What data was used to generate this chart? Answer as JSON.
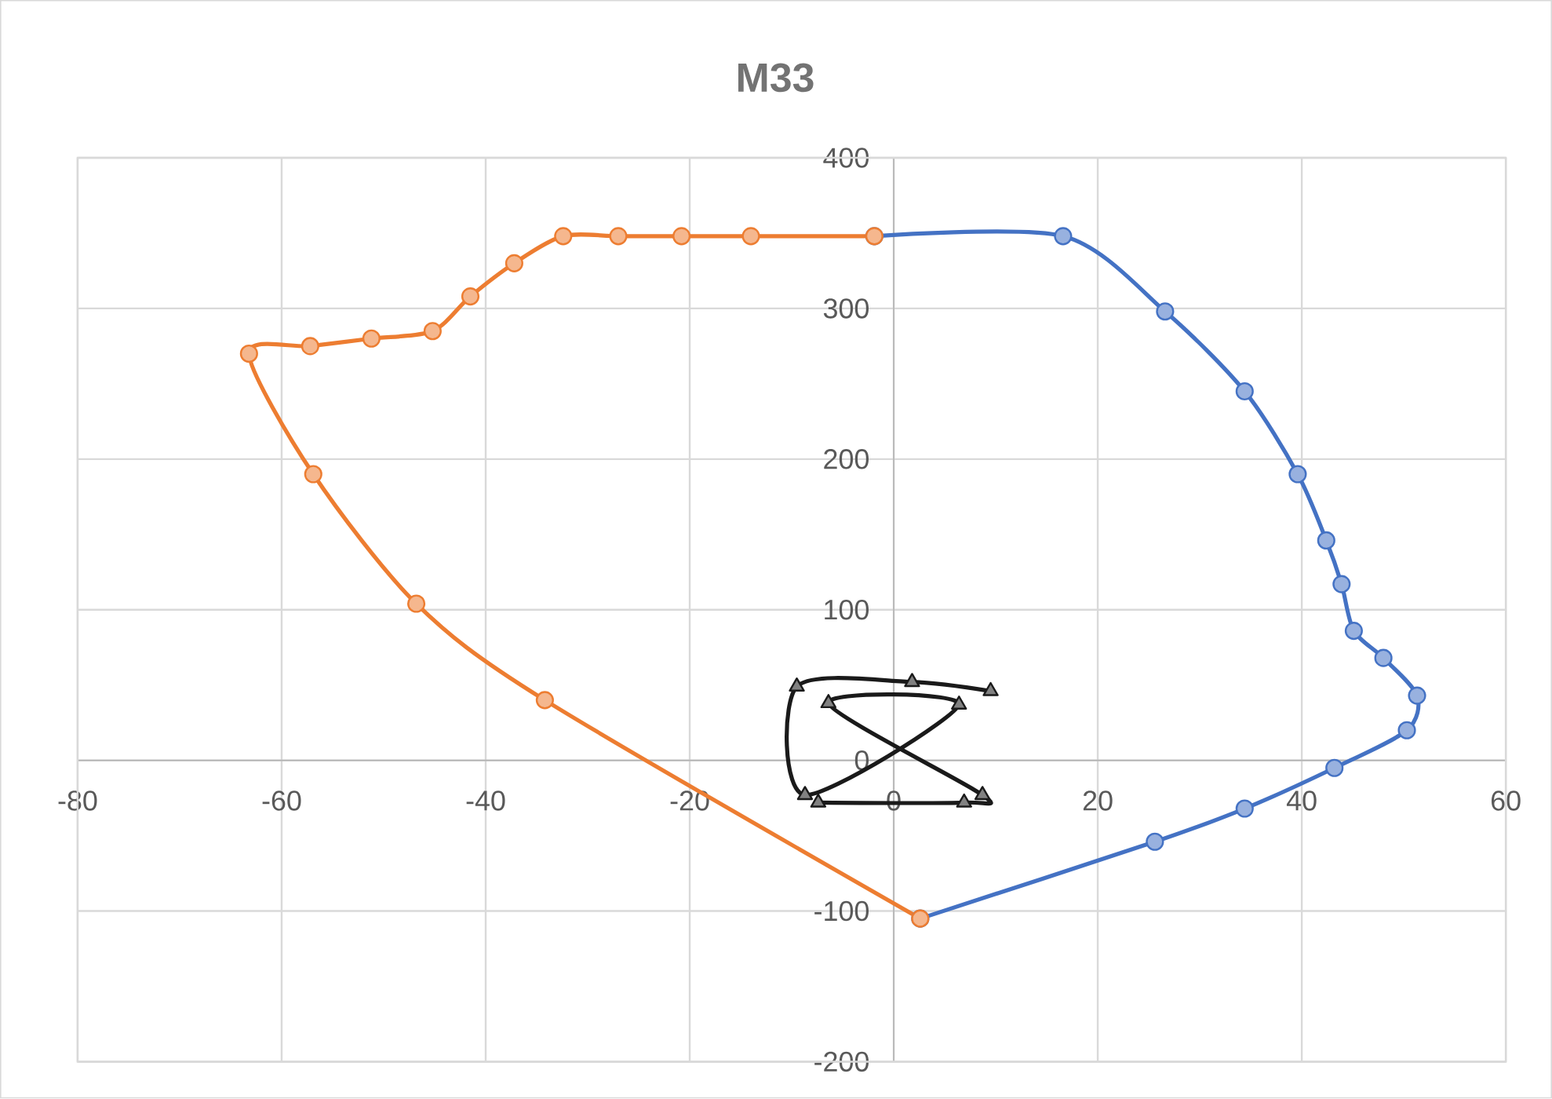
{
  "chart_data": {
    "type": "line",
    "title": "M33",
    "xlim": [
      -80,
      60
    ],
    "xticks": [
      -80,
      -60,
      -40,
      -20,
      0,
      20,
      40,
      60
    ],
    "ylim": [
      -200,
      400
    ],
    "yticks": [
      -200,
      -100,
      0,
      100,
      200,
      300,
      400
    ],
    "grid": true,
    "series": [
      {
        "color": "#4472c4",
        "marker": "circle",
        "x": [
          2.6,
          25.6,
          34.4,
          43.2,
          50.3,
          51.3,
          48.0,
          45.1,
          43.9,
          42.4,
          39.6,
          34.4,
          26.6,
          16.6,
          -1.9
        ],
        "values": [
          -105,
          -54,
          -32,
          -5,
          20,
          43,
          68,
          86,
          117,
          146,
          190,
          245,
          298,
          348,
          348
        ]
      },
      {
        "color": "#ed7d31",
        "marker": "circle",
        "x": [
          -1.9,
          -14.0,
          -20.8,
          -27.0,
          -32.4,
          -37.2,
          -41.5,
          -45.2,
          -51.2,
          -57.2,
          -63.2,
          -56.9,
          -46.8,
          -34.2,
          2.6
        ],
        "values": [
          348,
          348,
          348,
          348,
          348,
          330,
          308,
          285,
          280,
          275,
          270,
          190,
          104,
          40,
          -105
        ]
      },
      {
        "color": "#1a1a1a",
        "marker": "triangle",
        "x": [
          9.5,
          1.8,
          -9.5,
          -8.7,
          6.4,
          -6.4,
          8.7,
          6.9,
          -7.4
        ],
        "values": [
          46,
          52,
          49,
          -23,
          37,
          38,
          -23,
          -28,
          -28
        ]
      }
    ]
  }
}
